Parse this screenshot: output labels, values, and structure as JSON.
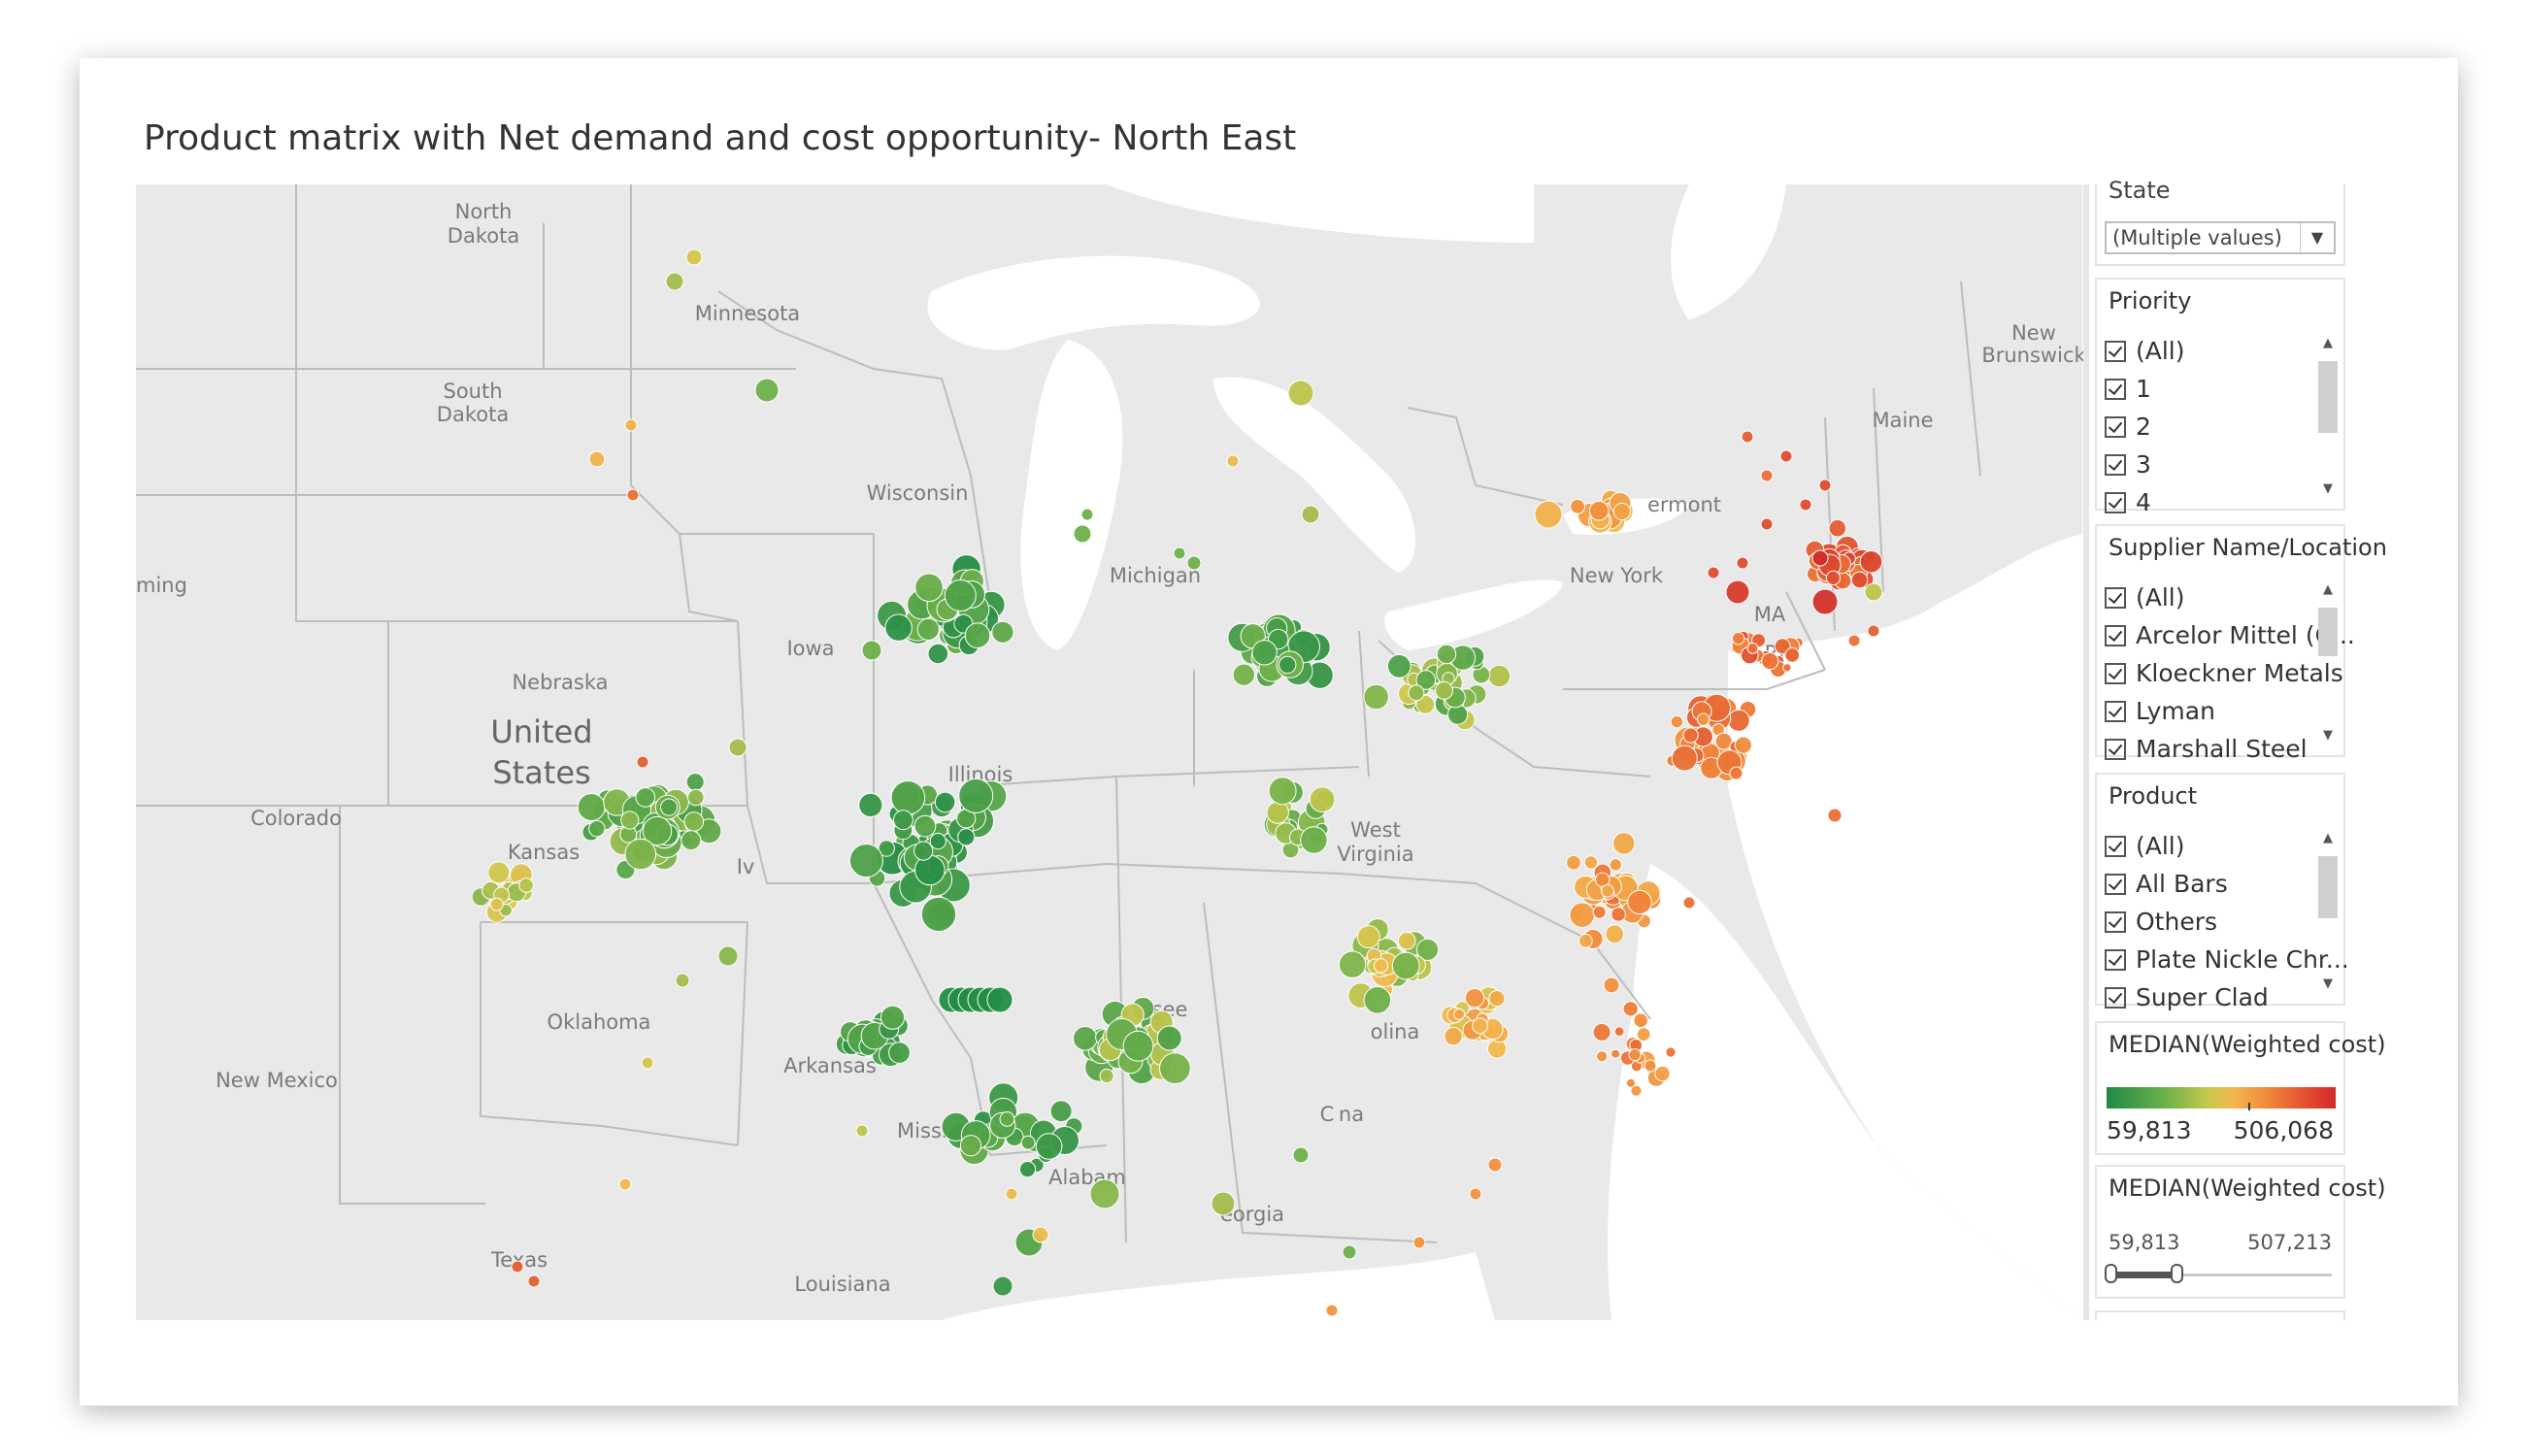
{
  "title": "Product matrix with Net demand and cost opportunity- North East",
  "map": {
    "labels": [
      {
        "text": "North",
        "kind": "state"
      },
      {
        "text": "Dakota",
        "kind": "state"
      },
      {
        "text": "Minnesota",
        "kind": "state"
      },
      {
        "text": "South",
        "kind": "state"
      },
      {
        "text": "Dakota",
        "kind": "state"
      },
      {
        "text": "Wisconsin",
        "kind": "state"
      },
      {
        "text": "Michigan",
        "kind": "state"
      },
      {
        "text": "ming",
        "kind": "state"
      },
      {
        "text": "Iowa",
        "kind": "state"
      },
      {
        "text": "Nebraska",
        "kind": "state"
      },
      {
        "text": "United",
        "kind": "country"
      },
      {
        "text": "States",
        "kind": "country"
      },
      {
        "text": "Illinois",
        "kind": "state"
      },
      {
        "text": "Colorado",
        "kind": "state"
      },
      {
        "text": "Kansas",
        "kind": "state"
      },
      {
        "text": "Oklahoma",
        "kind": "state"
      },
      {
        "text": "New Mexico",
        "kind": "state"
      },
      {
        "text": "Arkansas",
        "kind": "state"
      },
      {
        "text": "Mississippi",
        "kind": "state"
      },
      {
        "text": "Texas",
        "kind": "state"
      },
      {
        "text": "Louisiana",
        "kind": "state"
      },
      {
        "text": "Alabam",
        "kind": "state"
      },
      {
        "text": "eorgia",
        "kind": "state"
      },
      {
        "text": "see",
        "kind": "state"
      },
      {
        "text": "West",
        "kind": "state"
      },
      {
        "text": "Virginia",
        "kind": "state"
      },
      {
        "text": "olina",
        "kind": "state"
      },
      {
        "text": "C",
        "kind": "state"
      },
      {
        "text": "na",
        "kind": "state"
      },
      {
        "text": "New York",
        "kind": "state"
      },
      {
        "text": "ermont",
        "kind": "state"
      },
      {
        "text": "Maine",
        "kind": "state"
      },
      {
        "text": "New",
        "kind": "state"
      },
      {
        "text": "Brunswick",
        "kind": "state"
      },
      {
        "text": "MA",
        "kind": "state"
      },
      {
        "text": "RI",
        "kind": "state"
      },
      {
        "text": "Iv",
        "kind": "state"
      }
    ],
    "colors": {
      "low": "#1f8a45",
      "mid": "#d7c94d",
      "high": "#d12a2a"
    }
  },
  "filters": {
    "state": {
      "label": "State",
      "value": "(Multiple values)"
    },
    "priority": {
      "label": "Priority",
      "items": [
        "(All)",
        "1",
        "2",
        "3",
        "4"
      ]
    },
    "supplier": {
      "label": "Supplier Name/Location",
      "items": [
        "(All)",
        "Arcelor Mittel (C...",
        "Kloeckner Metals",
        "Lyman",
        "Marshall Steel"
      ]
    },
    "product": {
      "label": "Product",
      "items": [
        "(All)",
        "All Bars",
        "Others",
        "Plate Nickle Chr...",
        "Super Clad"
      ]
    }
  },
  "legend": {
    "title": "MEDIAN(Weighted cost)",
    "min": "59,813",
    "max": "506,068"
  },
  "range_slider": {
    "title": "MEDIAN(Weighted cost)",
    "min": "59,813",
    "max": "507,213"
  }
}
